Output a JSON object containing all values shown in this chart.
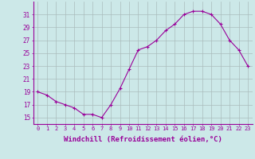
{
  "x": [
    0,
    1,
    2,
    3,
    4,
    5,
    6,
    7,
    8,
    9,
    10,
    11,
    12,
    13,
    14,
    15,
    16,
    17,
    18,
    19,
    20,
    21,
    22,
    23
  ],
  "y": [
    19,
    18.5,
    17.5,
    17,
    16.5,
    15.5,
    15.5,
    15,
    17,
    19.5,
    22.5,
    25.5,
    26,
    27,
    28.5,
    29.5,
    31,
    31.5,
    31.5,
    31,
    29.5,
    27,
    25.5,
    23
  ],
  "line_color": "#990099",
  "marker": "+",
  "marker_size": 3,
  "bg_color": "#cce8e8",
  "grid_color": "#aabcbc",
  "xlabel": "Windchill (Refroidissement éolien,°C)",
  "xlabel_fontsize": 6.5,
  "ylabel_ticks": [
    15,
    17,
    19,
    21,
    23,
    25,
    27,
    29,
    31
  ],
  "xtick_labels": [
    "0",
    "1",
    "2",
    "3",
    "4",
    "5",
    "6",
    "7",
    "8",
    "9",
    "10",
    "11",
    "12",
    "13",
    "14",
    "15",
    "16",
    "17",
    "18",
    "19",
    "20",
    "21",
    "22",
    "23"
  ],
  "ylim": [
    14,
    33
  ],
  "xlim": [
    -0.5,
    23.5
  ],
  "ytick_fontsize": 5.5,
  "xtick_fontsize": 5.0
}
